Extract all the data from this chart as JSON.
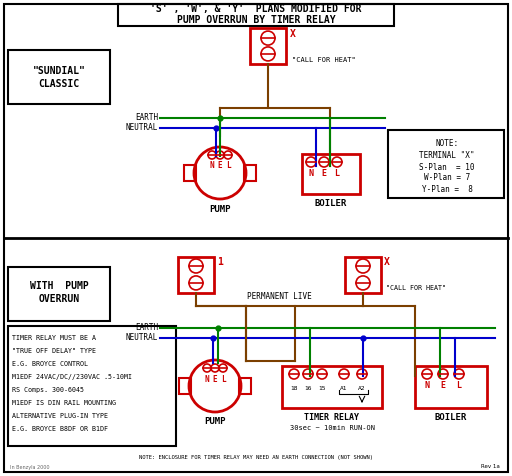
{
  "title_line1": "'S' , 'W', & 'Y'  PLANS MODIFIED FOR",
  "title_line2": "PUMP OVERRUN BY TIMER RELAY",
  "bg_color": "#ffffff",
  "red": "#cc0000",
  "green": "#008000",
  "blue": "#0000cc",
  "brown": "#7B3F00",
  "black": "#000000",
  "gray": "#666666",
  "notes_top": [
    "NOTE:",
    "TERMINAL \"X\"",
    "S-Plan  = 10",
    "W-Plan = 7",
    "Y-Plan =  8"
  ],
  "notes_bot": [
    "TIMER RELAY MUST BE A",
    "\"TRUE OFF DELAY\" TYPE",
    "E.G. BROYCE CONTROL",
    "M1EDF 24VAC/DC//230VAC .5-10MI",
    "RS Comps. 300-6045",
    "M1EDF IS DIN RAIL MOUNTING",
    "ALTERNATIVE PLUG-IN TYPE",
    "E.G. BROYCE B8DF OR B1DF"
  ]
}
